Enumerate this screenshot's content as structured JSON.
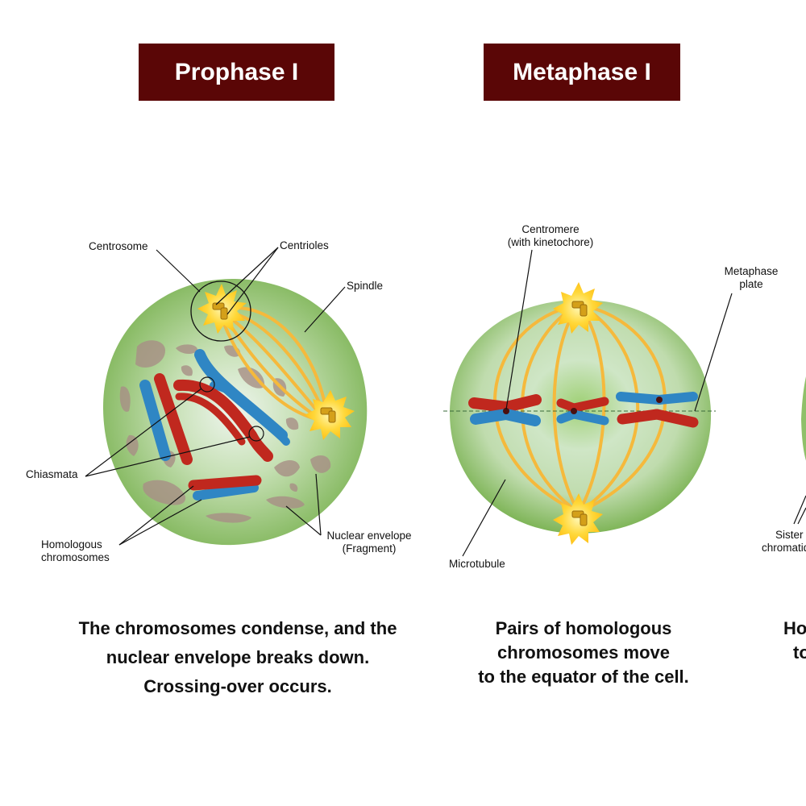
{
  "colors": {
    "title_bg": "#5a0606",
    "cell_green": "#8fc06a",
    "chromosome_red": "#c0281e",
    "chromosome_blue": "#2f86c4",
    "spindle": "#f5b93c",
    "envelope": "#a88f86"
  },
  "phases": [
    {
      "title": "Prophase I",
      "labels": {
        "centrosome": "Centrosome",
        "centrioles": "Centrioles",
        "spindle": "Spindle",
        "chiasmata": "Chiasmata",
        "homologous_line1": "Homologous",
        "homologous_line2": "chromosomes",
        "nuclear_line1": "Nuclear  envelope",
        "nuclear_line2": "(Fragment)"
      },
      "caption": [
        "The chromosomes condense, and the",
        "nuclear envelope breaks down.",
        "Crossing-over occurs."
      ]
    },
    {
      "title": "Metaphase I",
      "labels": {
        "centromere_line1": "Centromere",
        "centromere_line2": "(with kinetochore)",
        "metaphase_line1": "Metaphase",
        "metaphase_line2": "plate",
        "microtubule": "Microtubule"
      },
      "caption": [
        "Pairs of homologous",
        "chromosomes move",
        "to the equator of the cell."
      ]
    },
    {
      "labels": {
        "sister_line1": "Sister",
        "sister_line2": "chromatids"
      },
      "caption": [
        "Homologous chromosomes move",
        "to opposite poles."
      ]
    }
  ]
}
